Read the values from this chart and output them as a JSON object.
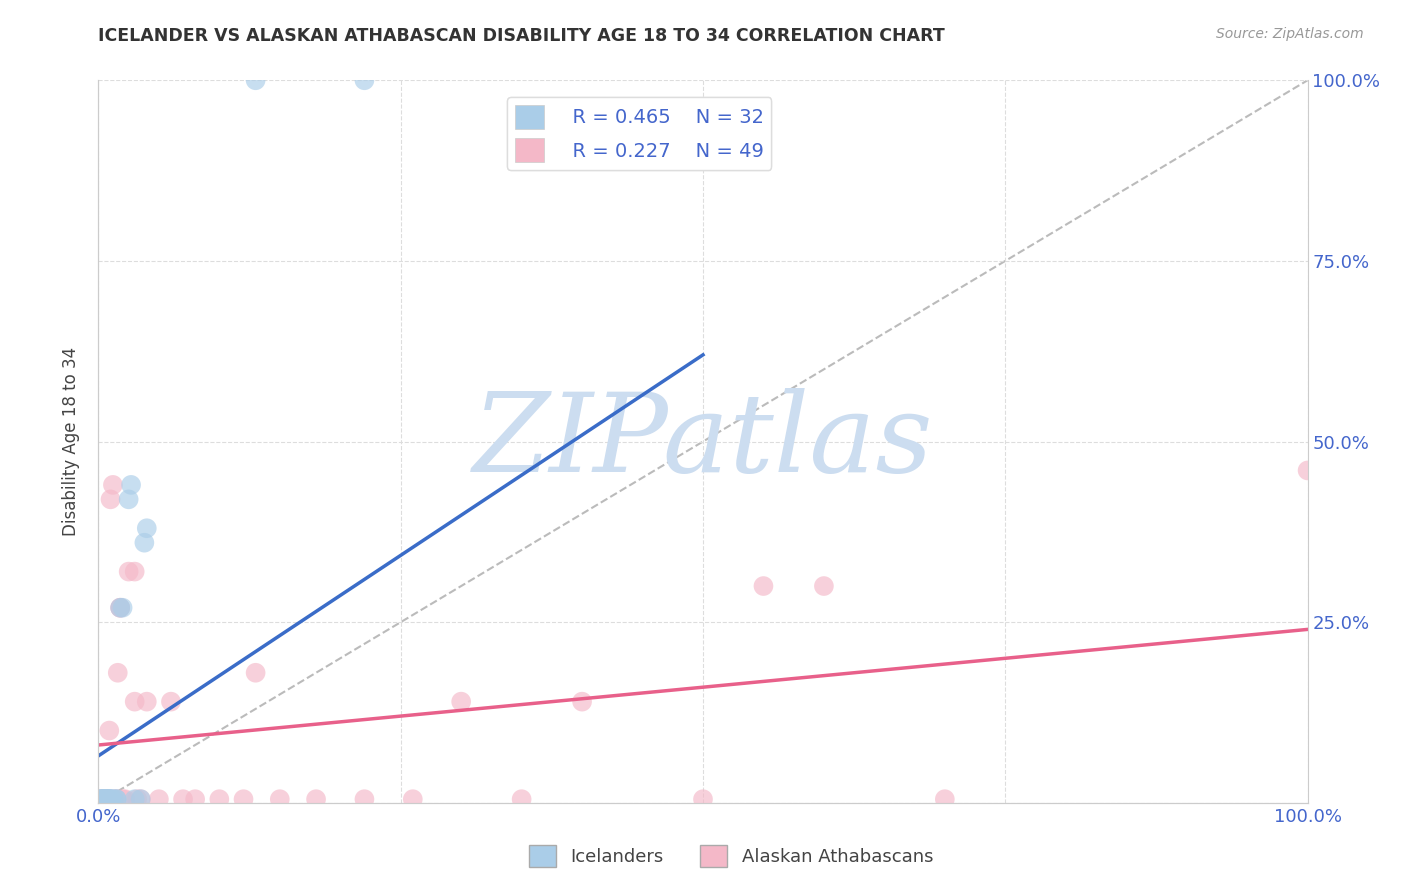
{
  "title": "ICELANDER VS ALASKAN ATHABASCAN DISABILITY AGE 18 TO 34 CORRELATION CHART",
  "source": "Source: ZipAtlas.com",
  "ylabel": "Disability Age 18 to 34",
  "xlim": [
    0,
    1
  ],
  "ylim": [
    0,
    1
  ],
  "xtick_vals": [
    0.0,
    0.25,
    0.5,
    0.75,
    1.0
  ],
  "ytick_vals": [
    0.0,
    0.25,
    0.5,
    0.75,
    1.0
  ],
  "xtick_labels_left": [
    "0.0%",
    "",
    "",
    "",
    "100.0%"
  ],
  "ytick_labels_left": [
    "",
    "",
    "",
    "",
    ""
  ],
  "ytick_labels_right": [
    "",
    "25.0%",
    "50.0%",
    "75.0%",
    "100.0%"
  ],
  "legend_R1": "R = 0.465",
  "legend_N1": "N = 32",
  "legend_R2": "R = 0.227",
  "legend_N2": "N = 49",
  "legend_label1": "Icelanders",
  "legend_label2": "Alaskan Athabascans",
  "blue_color": "#aacde8",
  "pink_color": "#f4b8c8",
  "blue_line_color": "#3a6cc8",
  "pink_line_color": "#e8608a",
  "watermark_text": "ZIPatlas",
  "watermark_color": "#ccddf0",
  "blue_line_x": [
    0.0,
    0.5
  ],
  "blue_line_y": [
    0.065,
    0.62
  ],
  "pink_line_x": [
    0.0,
    1.0
  ],
  "pink_line_y": [
    0.08,
    0.24
  ],
  "blue_dots": [
    [
      0.002,
      0.005
    ],
    [
      0.002,
      0.005
    ],
    [
      0.003,
      0.005
    ],
    [
      0.003,
      0.005
    ],
    [
      0.004,
      0.005
    ],
    [
      0.004,
      0.005
    ],
    [
      0.005,
      0.005
    ],
    [
      0.005,
      0.005
    ],
    [
      0.006,
      0.005
    ],
    [
      0.006,
      0.005
    ],
    [
      0.007,
      0.005
    ],
    [
      0.007,
      0.005
    ],
    [
      0.008,
      0.005
    ],
    [
      0.008,
      0.005
    ],
    [
      0.009,
      0.005
    ],
    [
      0.009,
      0.005
    ],
    [
      0.01,
      0.005
    ],
    [
      0.01,
      0.005
    ],
    [
      0.011,
      0.005
    ],
    [
      0.013,
      0.005
    ],
    [
      0.015,
      0.005
    ],
    [
      0.015,
      0.005
    ],
    [
      0.018,
      0.27
    ],
    [
      0.02,
      0.27
    ],
    [
      0.025,
      0.42
    ],
    [
      0.027,
      0.44
    ],
    [
      0.03,
      0.005
    ],
    [
      0.035,
      0.005
    ],
    [
      0.038,
      0.36
    ],
    [
      0.04,
      0.38
    ],
    [
      0.13,
      1.0
    ],
    [
      0.22,
      1.0
    ]
  ],
  "pink_dots": [
    [
      0.002,
      0.005
    ],
    [
      0.003,
      0.005
    ],
    [
      0.003,
      0.005
    ],
    [
      0.004,
      0.005
    ],
    [
      0.005,
      0.005
    ],
    [
      0.005,
      0.005
    ],
    [
      0.006,
      0.005
    ],
    [
      0.006,
      0.005
    ],
    [
      0.007,
      0.005
    ],
    [
      0.007,
      0.005
    ],
    [
      0.008,
      0.005
    ],
    [
      0.008,
      0.005
    ],
    [
      0.009,
      0.1
    ],
    [
      0.009,
      0.005
    ],
    [
      0.01,
      0.005
    ],
    [
      0.01,
      0.42
    ],
    [
      0.012,
      0.44
    ],
    [
      0.014,
      0.005
    ],
    [
      0.015,
      0.005
    ],
    [
      0.016,
      0.18
    ],
    [
      0.018,
      0.27
    ],
    [
      0.018,
      0.27
    ],
    [
      0.02,
      0.005
    ],
    [
      0.022,
      0.005
    ],
    [
      0.025,
      0.32
    ],
    [
      0.03,
      0.32
    ],
    [
      0.03,
      0.14
    ],
    [
      0.032,
      0.005
    ],
    [
      0.035,
      0.005
    ],
    [
      0.04,
      0.14
    ],
    [
      0.05,
      0.005
    ],
    [
      0.06,
      0.14
    ],
    [
      0.07,
      0.005
    ],
    [
      0.08,
      0.005
    ],
    [
      0.1,
      0.005
    ],
    [
      0.12,
      0.005
    ],
    [
      0.13,
      0.18
    ],
    [
      0.15,
      0.005
    ],
    [
      0.18,
      0.005
    ],
    [
      0.22,
      0.005
    ],
    [
      0.26,
      0.005
    ],
    [
      0.3,
      0.14
    ],
    [
      0.35,
      0.005
    ],
    [
      0.4,
      0.14
    ],
    [
      0.5,
      0.005
    ],
    [
      0.55,
      0.3
    ],
    [
      0.6,
      0.3
    ],
    [
      0.7,
      0.005
    ],
    [
      1.0,
      0.46
    ]
  ]
}
